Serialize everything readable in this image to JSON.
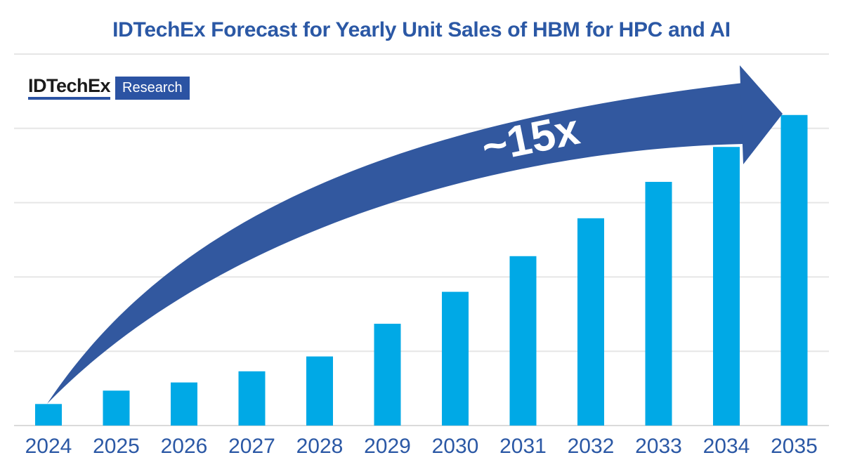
{
  "title": "IDTechEx Forecast for Yearly Unit Sales of HBM for HPC and AI",
  "logo": {
    "brand": "IDTechEx",
    "suffix": "Research"
  },
  "annotation": {
    "label": "~15x"
  },
  "colors": {
    "title_blue": "#2b58a5",
    "bar_blue": "#00a9e6",
    "arrow_blue": "#32589f",
    "axis_label_blue": "#2b58a5",
    "gridline_gray": "#e6e6e6",
    "logo_blue": "#2b53a3",
    "logo_text_black": "#1b1b1b",
    "annotation_text": "#ffffff"
  },
  "chart_data": {
    "type": "bar",
    "title": "IDTechEx Forecast for Yearly Unit Sales of HBM for HPC and AI",
    "categories": [
      "2024",
      "2025",
      "2026",
      "2027",
      "2028",
      "2029",
      "2030",
      "2031",
      "2032",
      "2033",
      "2034",
      "2035"
    ],
    "values": [
      0.29,
      0.47,
      0.58,
      0.73,
      0.93,
      1.37,
      1.8,
      2.28,
      2.79,
      3.28,
      3.75,
      4.18
    ],
    "xlabel": "",
    "ylabel": "",
    "ylim": [
      0,
      5
    ],
    "y_axis_tick_labels": "none shown (relative units)",
    "grid": "horizontal gridlines only",
    "legend": "none",
    "annotations": [
      {
        "text": "~15x",
        "meaning": "growth arrow from 2024 bar to 2035 bar"
      }
    ]
  }
}
